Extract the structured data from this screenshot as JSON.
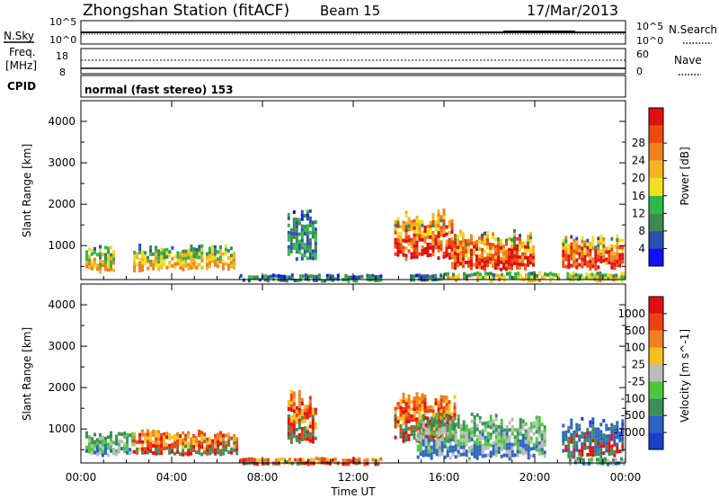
{
  "header": {
    "station": "Zhongshan Station (fitACF)",
    "beam": "Beam 15",
    "date": "17/Mar/2013"
  },
  "params_panels": {
    "nsky_label": "N.Sky",
    "nsky_ticks": [
      "10^5",
      "10^0"
    ],
    "nsearch_label": "N.Search",
    "nsearch_ticks": [
      "10^5",
      "10^0"
    ],
    "freq_label": "Freq.",
    "freq_unit": "[MHz]",
    "freq_ticks": [
      "18",
      "8"
    ],
    "nave_label": "Nave",
    "nave_ticks": [
      "60",
      "0"
    ],
    "cpid_label": "CPID",
    "cpid_text": "normal (fast stereo) 153"
  },
  "time_axis": {
    "label": "Time UT",
    "ticks": [
      "00:00",
      "04:00",
      "08:00",
      "12:00",
      "16:00",
      "20:00",
      "00:00"
    ]
  },
  "chart_data": [
    {
      "type": "heatmap",
      "panel": "power",
      "ylabel": "Slant Range [km]",
      "yticks": [
        "1000",
        "2000",
        "3000",
        "4000"
      ],
      "ylim": [
        180,
        4500
      ],
      "xlim_hours": [
        0,
        24
      ],
      "colorbar": {
        "label": "Power [dB]",
        "ticks": [
          "4",
          "8",
          "12",
          "16",
          "20",
          "24",
          "28"
        ],
        "colors": [
          "#1010ff",
          "#2a50b0",
          "#3c8a4c",
          "#2fb84a",
          "#f0e020",
          "#f3b520",
          "#f08020",
          "#f04a10",
          "#e01010"
        ]
      },
      "regions": [
        {
          "t0": 0.2,
          "t1": 1.5,
          "r0": 400,
          "r1": 1050,
          "level": "mid"
        },
        {
          "t0": 2.3,
          "t1": 3.5,
          "r0": 400,
          "r1": 1050,
          "level": "mid"
        },
        {
          "t0": 3.5,
          "t1": 5.3,
          "r0": 450,
          "r1": 1050,
          "level": "mid"
        },
        {
          "t0": 5.5,
          "t1": 6.8,
          "r0": 450,
          "r1": 1050,
          "level": "mid"
        },
        {
          "t0": 7.0,
          "t1": 11.3,
          "r0": 180,
          "r1": 330,
          "level": "low"
        },
        {
          "t0": 9.1,
          "t1": 10.3,
          "r0": 650,
          "r1": 1950,
          "level": "low"
        },
        {
          "t0": 11.5,
          "t1": 13.2,
          "r0": 180,
          "r1": 320,
          "level": "low"
        },
        {
          "t0": 13.8,
          "t1": 16.4,
          "r0": 700,
          "r1": 1900,
          "level": "high"
        },
        {
          "t0": 14.5,
          "t1": 16.0,
          "r0": 180,
          "r1": 330,
          "level": "low"
        },
        {
          "t0": 16.2,
          "t1": 20.0,
          "r0": 420,
          "r1": 1400,
          "level": "high"
        },
        {
          "t0": 16.0,
          "t1": 21.0,
          "r0": 180,
          "r1": 380,
          "level": "mid"
        },
        {
          "t0": 21.2,
          "t1": 23.9,
          "r0": 450,
          "r1": 1300,
          "level": "high"
        },
        {
          "t0": 21.4,
          "t1": 23.9,
          "r0": 180,
          "r1": 380,
          "level": "mid"
        }
      ]
    },
    {
      "type": "heatmap",
      "panel": "velocity",
      "ylabel": "Slant Range [km]",
      "yticks": [
        "1000",
        "2000",
        "3000",
        "4000"
      ],
      "ylim": [
        180,
        4500
      ],
      "xlim_hours": [
        0,
        24
      ],
      "colorbar": {
        "label": "Velocity [m s^-1]",
        "ticks": [
          "1000",
          "500",
          "100",
          "25",
          "-25",
          "-100",
          "-500",
          "-1000"
        ],
        "colors": [
          "#1a3fd0",
          "#2d64c4",
          "#3c8f58",
          "#4cc840",
          "#bbbbbb",
          "#f4c020",
          "#f08020",
          "#f04010",
          "#e01010"
        ]
      },
      "regions": [
        {
          "t0": 0.2,
          "t1": 2.3,
          "r0": 400,
          "r1": 950,
          "level": "green"
        },
        {
          "t0": 2.3,
          "t1": 6.9,
          "r0": 400,
          "r1": 1000,
          "level": "orange"
        },
        {
          "t0": 7.0,
          "t1": 11.3,
          "r0": 180,
          "r1": 330,
          "level": "orange"
        },
        {
          "t0": 9.1,
          "t1": 10.3,
          "r0": 650,
          "r1": 1950,
          "level": "orange"
        },
        {
          "t0": 11.5,
          "t1": 13.2,
          "r0": 180,
          "r1": 320,
          "level": "orange"
        },
        {
          "t0": 13.8,
          "t1": 16.5,
          "r0": 700,
          "r1": 1900,
          "level": "orange"
        },
        {
          "t0": 14.8,
          "t1": 20.5,
          "r0": 300,
          "r1": 1400,
          "level": "green"
        },
        {
          "t0": 21.2,
          "t1": 23.9,
          "r0": 350,
          "r1": 1300,
          "level": "blue"
        },
        {
          "t0": 21.5,
          "t1": 23.9,
          "r0": 180,
          "r1": 330,
          "level": "green"
        }
      ]
    }
  ]
}
